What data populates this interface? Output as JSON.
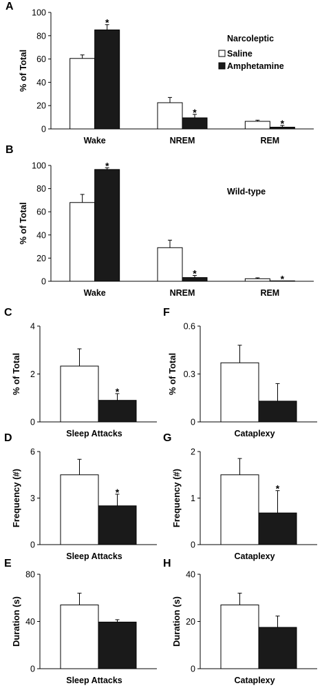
{
  "legend": {
    "items": [
      {
        "label": "Saline",
        "color": "#ffffff"
      },
      {
        "label": "Amphetamine",
        "color": "#1a1a1a"
      }
    ]
  },
  "chart_data": [
    {
      "id": "A",
      "panel_label": "A",
      "type": "bar",
      "annotation": "Narcoleptic",
      "ylabel": "% of Total",
      "ylim": [
        0,
        100
      ],
      "yticks": [
        0,
        20,
        40,
        60,
        80,
        100
      ],
      "categories": [
        "Wake",
        "NREM",
        "REM"
      ],
      "series": [
        {
          "name": "Saline",
          "color": "#ffffff",
          "values": [
            60.5,
            22.5,
            6.5
          ],
          "errors": [
            3,
            4.5,
            1
          ]
        },
        {
          "name": "Amphetamine",
          "color": "#1a1a1a",
          "values": [
            85,
            9.5,
            1.5
          ],
          "errors": [
            4.5,
            3,
            1.5
          ]
        }
      ],
      "significance": [
        "*",
        "*",
        "*"
      ],
      "significance_on": "Amphetamine"
    },
    {
      "id": "B",
      "panel_label": "B",
      "type": "bar",
      "annotation": "Wild-type",
      "ylabel": "% of Total",
      "ylim": [
        0,
        100
      ],
      "yticks": [
        0,
        20,
        40,
        60,
        80,
        100
      ],
      "categories": [
        "Wake",
        "NREM",
        "REM"
      ],
      "series": [
        {
          "name": "Saline",
          "color": "#ffffff",
          "values": [
            68,
            29,
            2.2
          ],
          "errors": [
            7,
            6.5,
            0.8
          ]
        },
        {
          "name": "Amphetamine",
          "color": "#1a1a1a",
          "values": [
            96.5,
            3.2,
            0.1
          ],
          "errors": [
            1.5,
            1.8,
            0.1
          ]
        }
      ],
      "significance": [
        "*",
        "*",
        "*"
      ],
      "significance_on": "Amphetamine"
    },
    {
      "id": "C",
      "panel_label": "C",
      "type": "bar",
      "ylabel": "% of Total",
      "ylim": [
        0,
        4
      ],
      "yticks": [
        0,
        2,
        4
      ],
      "categories": [
        "Sleep Attacks"
      ],
      "series": [
        {
          "name": "Saline",
          "color": "#ffffff",
          "values": [
            2.33
          ],
          "errors": [
            0.72
          ]
        },
        {
          "name": "Amphetamine",
          "color": "#1a1a1a",
          "values": [
            0.9
          ],
          "errors": [
            0.28
          ]
        }
      ],
      "significance": [
        "*"
      ],
      "significance_on": "Amphetamine"
    },
    {
      "id": "F",
      "panel_label": "F",
      "type": "bar",
      "ylabel": "% of Total",
      "ylim": [
        0,
        0.6
      ],
      "yticks": [
        0,
        0.3,
        0.6
      ],
      "categories": [
        "Cataplexy"
      ],
      "series": [
        {
          "name": "Saline",
          "color": "#ffffff",
          "values": [
            0.37
          ],
          "errors": [
            0.11
          ]
        },
        {
          "name": "Amphetamine",
          "color": "#1a1a1a",
          "values": [
            0.13
          ],
          "errors": [
            0.11
          ]
        }
      ],
      "significance": [
        ""
      ],
      "significance_on": "Amphetamine"
    },
    {
      "id": "D",
      "panel_label": "D",
      "type": "bar",
      "ylabel": "Frequency (#)",
      "ylim": [
        0,
        6
      ],
      "yticks": [
        0,
        3,
        6
      ],
      "categories": [
        "Sleep Attacks"
      ],
      "series": [
        {
          "name": "Saline",
          "color": "#ffffff",
          "values": [
            4.5
          ],
          "errors": [
            1.0
          ]
        },
        {
          "name": "Amphetamine",
          "color": "#1a1a1a",
          "values": [
            2.5
          ],
          "errors": [
            0.75
          ]
        }
      ],
      "significance": [
        "*"
      ],
      "significance_on": "Amphetamine"
    },
    {
      "id": "G",
      "panel_label": "G",
      "type": "bar",
      "ylabel": "Frequency (#)",
      "ylim": [
        0,
        2
      ],
      "yticks": [
        0,
        1,
        2
      ],
      "categories": [
        "Cataplexy"
      ],
      "series": [
        {
          "name": "Saline",
          "color": "#ffffff",
          "values": [
            1.5
          ],
          "errors": [
            0.35
          ]
        },
        {
          "name": "Amphetamine",
          "color": "#1a1a1a",
          "values": [
            0.68
          ],
          "errors": [
            0.48
          ]
        }
      ],
      "significance": [
        "*"
      ],
      "significance_on": "Amphetamine"
    },
    {
      "id": "E",
      "panel_label": "E",
      "type": "bar",
      "ylabel": "Duration (s)",
      "ylim": [
        0,
        80
      ],
      "yticks": [
        0,
        40,
        80
      ],
      "categories": [
        "Sleep Attacks"
      ],
      "series": [
        {
          "name": "Saline",
          "color": "#ffffff",
          "values": [
            54
          ],
          "errors": [
            10
          ]
        },
        {
          "name": "Amphetamine",
          "color": "#1a1a1a",
          "values": [
            39.5
          ],
          "errors": [
            2
          ]
        }
      ],
      "significance": [
        ""
      ],
      "significance_on": "Amphetamine"
    },
    {
      "id": "H",
      "panel_label": "H",
      "type": "bar",
      "ylabel": "Duration (s)",
      "ylim": [
        0,
        40
      ],
      "yticks": [
        0,
        20,
        40
      ],
      "categories": [
        "Cataplexy"
      ],
      "series": [
        {
          "name": "Saline",
          "color": "#ffffff",
          "values": [
            27
          ],
          "errors": [
            5
          ]
        },
        {
          "name": "Amphetamine",
          "color": "#1a1a1a",
          "values": [
            17.5
          ],
          "errors": [
            4.8
          ]
        }
      ],
      "significance": [
        ""
      ],
      "significance_on": "Amphetamine"
    }
  ]
}
